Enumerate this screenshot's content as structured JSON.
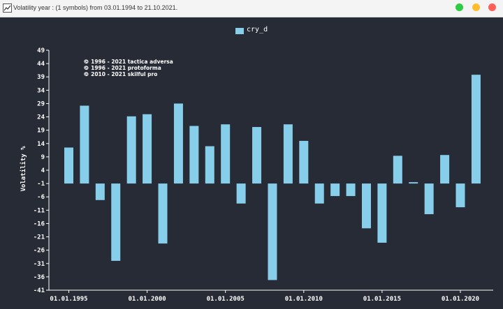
{
  "window": {
    "title": "Volatility year : (1 symbols) from 03.01.1994 to 21.10.2021.",
    "app_icon": "chart-icon",
    "buttons": [
      {
        "name": "close",
        "color": "#2ecc40"
      },
      {
        "name": "minimize",
        "color": "#ffbd2e"
      },
      {
        "name": "maximize",
        "color": "#ff5f57"
      }
    ]
  },
  "colors": {
    "background": "#262b35",
    "bar": "#87ceeb",
    "axis": "#ffffff",
    "text": "#ffffff"
  },
  "copyright_lines": [
    "© 1996 - 2021 tactica adversa",
    "© 1996 - 2021 protoforma",
    "© 2010 - 2021 skilful pro"
  ],
  "chart_data": {
    "type": "bar",
    "title": "",
    "ylabel": "Volatility %",
    "xlabel": "",
    "legend": {
      "entries": [
        "cry_d"
      ],
      "placement": "top-center"
    },
    "ylim": [
      -41,
      49
    ],
    "y_ticks": [
      49,
      44,
      39,
      34,
      29,
      24,
      19,
      14,
      9,
      4,
      -1,
      -6,
      -11,
      -16,
      -21,
      -26,
      -31,
      -36,
      -41
    ],
    "x_tick_labels": [
      "01.01.1995",
      "01.01.2000",
      "01.01.2005",
      "01.01.2010",
      "01.01.2015",
      "01.01.2020"
    ],
    "x_tick_years": [
      1995,
      2000,
      2005,
      2010,
      2015,
      2020
    ],
    "grid": false,
    "series": [
      {
        "name": "cry_d",
        "x": [
          1995,
          1996,
          1997,
          1998,
          1999,
          2000,
          2001,
          2002,
          2003,
          2004,
          2005,
          2006,
          2007,
          2008,
          2009,
          2010,
          2011,
          2012,
          2013,
          2014,
          2015,
          2016,
          2017,
          2018,
          2019,
          2020,
          2021
        ],
        "values": [
          12.5,
          28.2,
          -7.2,
          -30.0,
          24.2,
          25.0,
          -23.5,
          29.0,
          20.6,
          13.0,
          21.2,
          -8.5,
          20.2,
          -37.2,
          21.2,
          15.0,
          -8.5,
          -5.7,
          -5.7,
          -17.8,
          -23.2,
          9.4,
          -0.5,
          -12.5,
          9.7,
          -9.9,
          39.8
        ]
      }
    ]
  }
}
